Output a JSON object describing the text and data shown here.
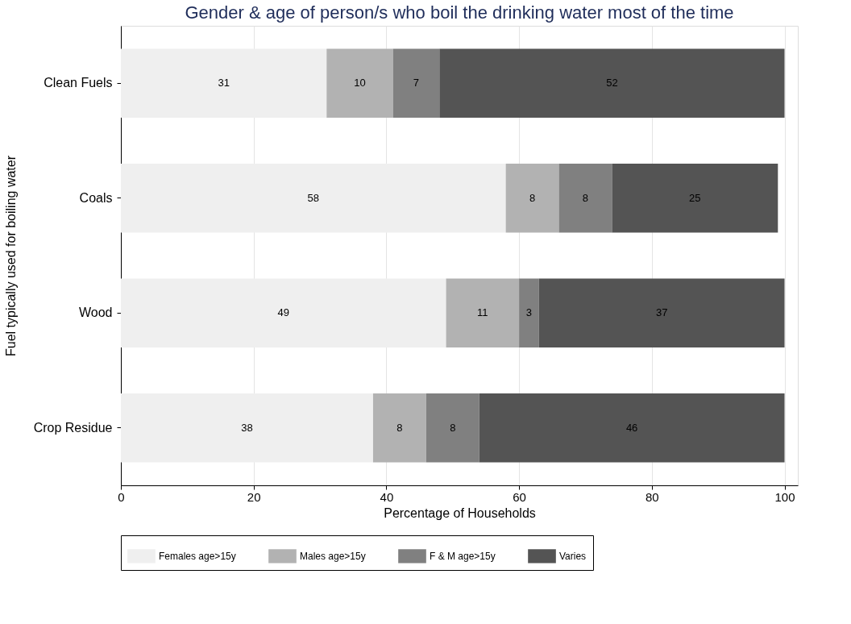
{
  "chart_data": {
    "type": "bar",
    "orientation": "horizontal",
    "stacked": true,
    "title": "Gender & age of person/s who boil the drinking water most of the time",
    "xlabel": "Percentage of Households",
    "ylabel": "Fuel typically used for boiling water",
    "categories": [
      "Clean Fuels",
      "Coals",
      "Wood",
      "Crop Residue"
    ],
    "series": [
      {
        "name": "Females age>15y",
        "color": "#efefef",
        "values": [
          31,
          58,
          49,
          38
        ]
      },
      {
        "name": "Males age>15y",
        "color": "#b2b2b2",
        "values": [
          10,
          8,
          11,
          8
        ]
      },
      {
        "name": "F & M age>15y",
        "color": "#808080",
        "values": [
          7,
          8,
          3,
          8
        ]
      },
      {
        "name": "Varies",
        "color": "#545454",
        "values": [
          52,
          25,
          37,
          46
        ]
      }
    ],
    "xlim": [
      0,
      102
    ],
    "xticks": [
      0,
      20,
      40,
      60,
      80,
      100
    ],
    "grid": "x",
    "legend": "bottom",
    "data_labels": true
  }
}
